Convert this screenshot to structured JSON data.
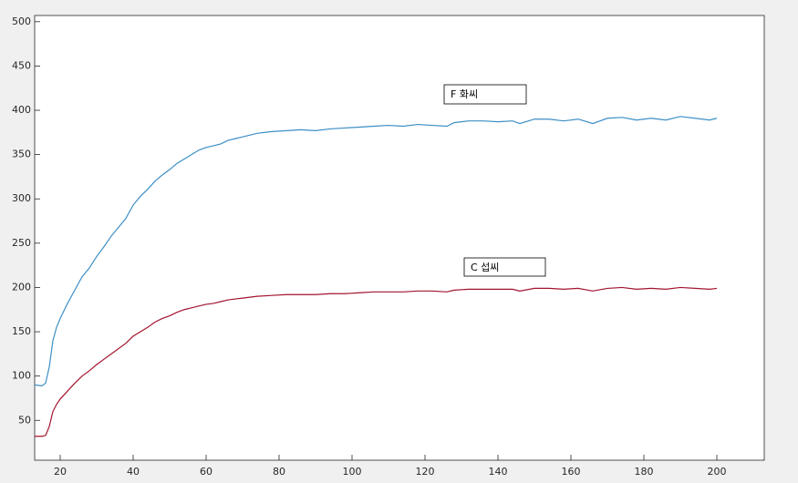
{
  "chart_data": {
    "type": "line",
    "x": [
      13,
      15,
      16,
      17,
      18,
      19,
      20,
      22,
      24,
      26,
      28,
      30,
      32,
      34,
      36,
      38,
      40,
      42,
      44,
      46,
      48,
      50,
      52,
      54,
      56,
      58,
      60,
      62,
      64,
      66,
      68,
      70,
      74,
      78,
      82,
      86,
      90,
      94,
      98,
      102,
      106,
      110,
      114,
      118,
      122,
      126,
      128,
      132,
      136,
      140,
      144,
      146,
      150,
      154,
      158,
      162,
      166,
      170,
      174,
      178,
      182,
      186,
      190,
      194,
      198,
      200
    ],
    "series": [
      {
        "name": "F 화씨",
        "color": "#3d8fc6",
        "values": [
          90,
          89,
          92,
          110,
          140,
          155,
          165,
          182,
          197,
          212,
          222,
          235,
          246,
          258,
          268,
          278,
          293,
          303,
          311,
          320,
          327,
          333,
          340,
          345,
          350,
          355,
          358,
          360,
          362,
          366,
          368,
          370,
          374,
          376,
          377,
          378,
          377,
          379,
          380,
          381,
          382,
          383,
          382,
          384,
          383,
          382,
          386,
          388,
          388,
          387,
          388,
          385,
          390,
          390,
          388,
          390,
          385,
          391,
          392,
          389,
          391,
          389,
          393,
          391,
          389,
          391
        ]
      },
      {
        "name": "C 섭씨",
        "color": "#a2142f",
        "values": [
          32,
          32,
          33,
          43,
          60,
          68,
          74,
          83,
          92,
          100,
          106,
          113,
          119,
          125,
          131,
          137,
          145,
          150,
          155,
          161,
          165,
          168,
          172,
          175,
          177,
          179,
          181,
          182,
          184,
          186,
          187,
          188,
          190,
          191,
          192,
          192,
          192,
          193,
          193,
          194,
          195,
          195,
          195,
          196,
          196,
          195,
          197,
          198,
          198,
          198,
          198,
          196,
          199,
          199,
          198,
          199,
          196,
          199,
          200,
          198,
          199,
          198,
          200,
          199,
          198,
          199
        ]
      }
    ],
    "xlim": [
      13,
      213
    ],
    "ylim": [
      5,
      507
    ],
    "xticks": [
      20,
      40,
      60,
      80,
      100,
      120,
      140,
      160,
      180,
      200
    ],
    "yticks": [
      50,
      100,
      150,
      200,
      250,
      300,
      350,
      400,
      450,
      500
    ]
  }
}
